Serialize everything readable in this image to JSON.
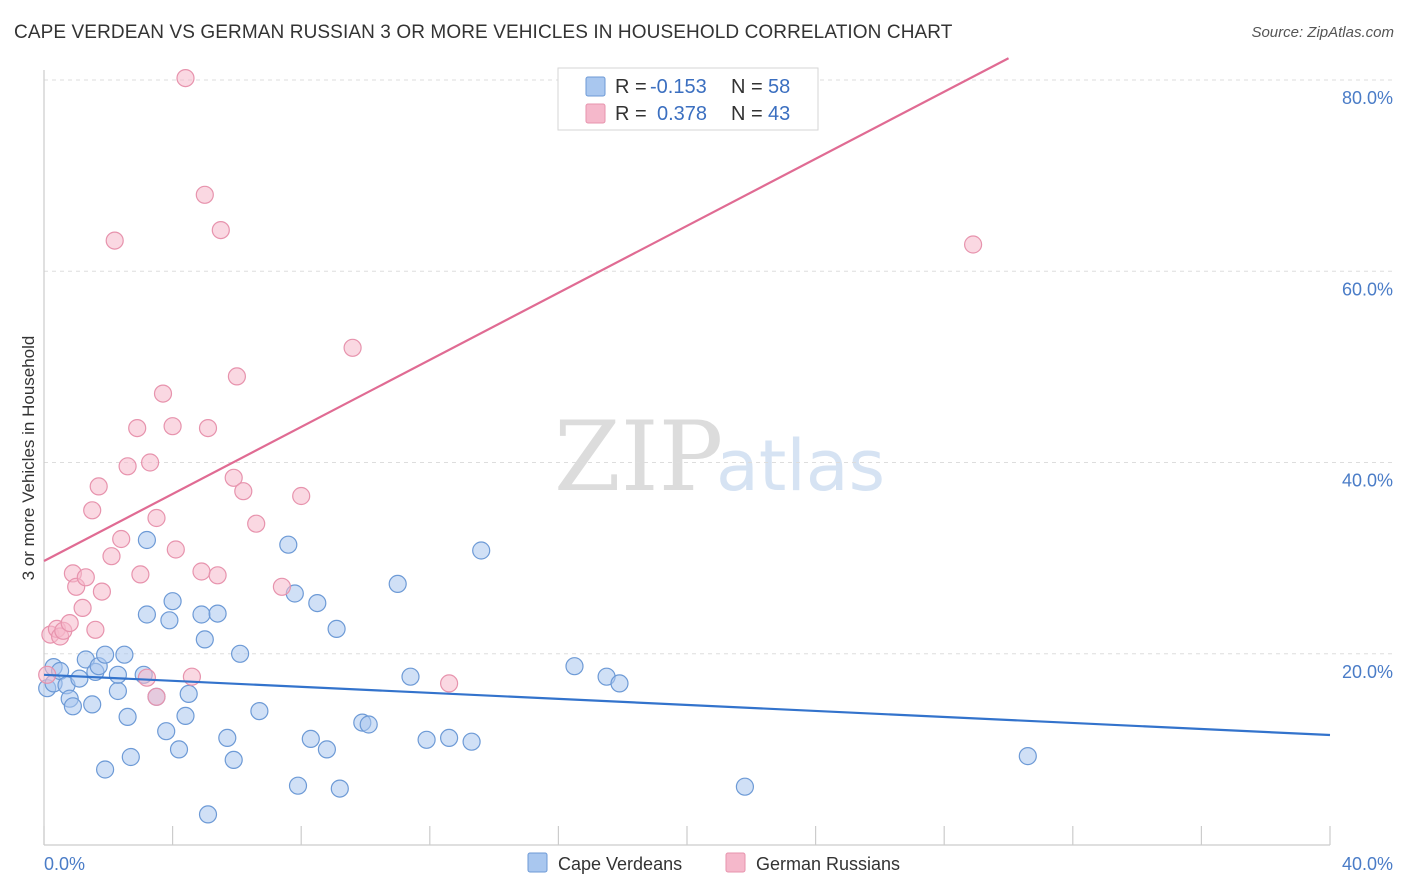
{
  "header": {
    "title": "CAPE VERDEAN VS GERMAN RUSSIAN 3 OR MORE VEHICLES IN HOUSEHOLD CORRELATION CHART",
    "source": "Source: ZipAtlas.com"
  },
  "watermark": {
    "zip": "ZIP",
    "atlas": "atlas"
  },
  "legend": {
    "r_label": "R =",
    "n_label": "N =",
    "rows": [
      {
        "r": "-0.153",
        "n": "58"
      },
      {
        "r": "0.378",
        "n": "43"
      }
    ]
  },
  "colors": {
    "blue_fill": "#a9c7ef",
    "blue_stroke": "#6d9ad6",
    "blue_line": "#3373cc",
    "pink_fill": "#f5b8cb",
    "pink_stroke": "#e793ad",
    "pink_line": "#e06b93",
    "tick_label": "#4a7cc7",
    "grid": "#dddddd"
  },
  "chart_data": {
    "type": "scatter",
    "title": "CAPE VERDEAN VS GERMAN RUSSIAN 3 OR MORE VEHICLES IN HOUSEHOLD CORRELATION CHART",
    "ylabel": "3 or more Vehicles in Household",
    "xlim": [
      0,
      40
    ],
    "ylim": [
      0,
      80
    ],
    "x_tick_labels": [
      "0.0%",
      "40.0%"
    ],
    "y_ticks": [
      20,
      40,
      60,
      80
    ],
    "y_tick_labels": [
      "20.0%",
      "40.0%",
      "60.0%",
      "80.0%"
    ],
    "grid": true,
    "legend_position": "top-center",
    "series": [
      {
        "name": "Cape Verdeans",
        "r": -0.153,
        "n": 58,
        "trend": {
          "x": [
            0,
            40
          ],
          "y": [
            17.8,
            11.5
          ],
          "dashed_from": null
        },
        "points": [
          [
            0.1,
            16.4
          ],
          [
            0.3,
            18.6
          ],
          [
            0.3,
            16.9
          ],
          [
            0.5,
            18.2
          ],
          [
            0.7,
            16.7
          ],
          [
            0.8,
            15.3
          ],
          [
            0.9,
            14.5
          ],
          [
            1.1,
            17.4
          ],
          [
            1.3,
            19.4
          ],
          [
            1.5,
            14.7
          ],
          [
            1.6,
            18.1
          ],
          [
            1.7,
            18.7
          ],
          [
            1.9,
            19.9
          ],
          [
            1.9,
            7.9
          ],
          [
            2.3,
            16.1
          ],
          [
            2.3,
            17.8
          ],
          [
            2.5,
            19.9
          ],
          [
            2.6,
            13.4
          ],
          [
            2.7,
            9.2
          ],
          [
            3.1,
            17.8
          ],
          [
            3.2,
            31.9
          ],
          [
            3.2,
            24.1
          ],
          [
            3.5,
            15.5
          ],
          [
            3.8,
            11.9
          ],
          [
            3.9,
            23.5
          ],
          [
            4.0,
            25.5
          ],
          [
            4.2,
            10.0
          ],
          [
            4.4,
            13.5
          ],
          [
            4.5,
            15.8
          ],
          [
            4.9,
            24.1
          ],
          [
            5.0,
            21.5
          ],
          [
            5.1,
            3.2
          ],
          [
            5.4,
            24.2
          ],
          [
            5.7,
            11.2
          ],
          [
            5.9,
            8.9
          ],
          [
            6.1,
            20.0
          ],
          [
            6.7,
            14.0
          ],
          [
            7.6,
            31.4
          ],
          [
            7.8,
            26.3
          ],
          [
            7.9,
            6.2
          ],
          [
            8.3,
            11.1
          ],
          [
            8.5,
            25.3
          ],
          [
            8.8,
            10.0
          ],
          [
            9.1,
            22.6
          ],
          [
            9.2,
            5.9
          ],
          [
            9.9,
            12.8
          ],
          [
            10.1,
            12.6
          ],
          [
            11.0,
            27.3
          ],
          [
            11.4,
            17.6
          ],
          [
            11.9,
            11.0
          ],
          [
            12.6,
            11.2
          ],
          [
            13.3,
            10.8
          ],
          [
            13.6,
            30.8
          ],
          [
            16.5,
            18.7
          ],
          [
            17.5,
            17.6
          ],
          [
            17.9,
            16.9
          ],
          [
            21.8,
            6.1
          ],
          [
            30.6,
            9.3
          ]
        ]
      },
      {
        "name": "German Russians",
        "r": 0.378,
        "n": 43,
        "trend": {
          "x": [
            0,
            40
          ],
          "y": [
            29.7,
            99.8
          ],
          "dashed_from": 30.0
        },
        "points": [
          [
            0.1,
            17.8
          ],
          [
            0.2,
            22.0
          ],
          [
            0.4,
            22.6
          ],
          [
            0.5,
            21.8
          ],
          [
            0.6,
            22.4
          ],
          [
            0.8,
            23.2
          ],
          [
            0.9,
            28.4
          ],
          [
            1.0,
            27.0
          ],
          [
            1.2,
            24.8
          ],
          [
            1.3,
            28.0
          ],
          [
            1.5,
            35.0
          ],
          [
            1.6,
            22.5
          ],
          [
            1.7,
            37.5
          ],
          [
            1.8,
            26.5
          ],
          [
            2.1,
            30.2
          ],
          [
            2.2,
            63.2
          ],
          [
            2.4,
            32.0
          ],
          [
            2.6,
            39.6
          ],
          [
            2.9,
            43.6
          ],
          [
            3.0,
            28.3
          ],
          [
            3.2,
            17.5
          ],
          [
            3.3,
            40.0
          ],
          [
            3.5,
            34.2
          ],
          [
            3.5,
            15.5
          ],
          [
            3.7,
            47.2
          ],
          [
            4.0,
            43.8
          ],
          [
            4.1,
            30.9
          ],
          [
            4.4,
            80.2
          ],
          [
            4.6,
            17.6
          ],
          [
            4.9,
            28.6
          ],
          [
            5.0,
            68.0
          ],
          [
            5.1,
            43.6
          ],
          [
            5.4,
            28.2
          ],
          [
            5.5,
            64.3
          ],
          [
            5.9,
            38.4
          ],
          [
            6.0,
            49.0
          ],
          [
            6.2,
            37.0
          ],
          [
            6.6,
            33.6
          ],
          [
            7.4,
            27.0
          ],
          [
            8.0,
            36.5
          ],
          [
            9.6,
            52.0
          ],
          [
            12.6,
            16.9
          ],
          [
            28.9,
            62.8
          ]
        ]
      }
    ]
  }
}
